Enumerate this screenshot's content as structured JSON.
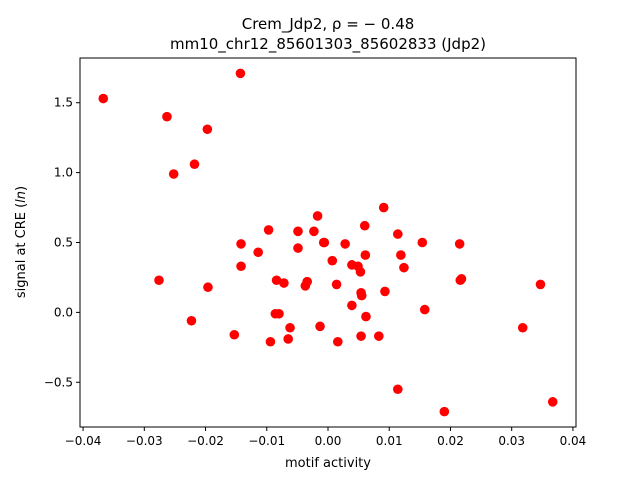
{
  "chart_data": {
    "type": "scatter",
    "title_line1": "Crem_Jdp2, ρ = − 0.48",
    "title_line2": "mm10_chr12_85601303_85602833 (Jdp2)",
    "xlabel": "motif activity",
    "ylabel": "signal at CRE (ln)",
    "xlim": [
      -0.0405,
      0.0405
    ],
    "ylim": [
      -0.82,
      1.82
    ],
    "xticks": [
      -0.04,
      -0.03,
      -0.02,
      -0.01,
      0.0,
      0.01,
      0.02,
      0.03,
      0.04
    ],
    "xtick_labels": [
      "−0.04",
      "−0.03",
      "−0.02",
      "−0.01",
      "0.00",
      "0.01",
      "0.02",
      "0.03",
      "0.04"
    ],
    "yticks": [
      -0.5,
      0.0,
      0.5,
      1.0,
      1.5
    ],
    "ytick_labels": [
      "−0.5",
      "0.0",
      "0.5",
      "1.0",
      "1.5"
    ],
    "grid": false,
    "marker_color": "#ff0000",
    "points": [
      {
        "x": -0.0367,
        "y": 1.53
      },
      {
        "x": -0.0263,
        "y": 1.4
      },
      {
        "x": -0.0143,
        "y": 1.71
      },
      {
        "x": -0.0197,
        "y": 1.31
      },
      {
        "x": -0.0218,
        "y": 1.06
      },
      {
        "x": -0.0252,
        "y": 0.99
      },
      {
        "x": -0.0276,
        "y": 0.23
      },
      {
        "x": -0.0223,
        "y": -0.06
      },
      {
        "x": -0.0196,
        "y": 0.18
      },
      {
        "x": -0.0153,
        "y": -0.16
      },
      {
        "x": -0.0142,
        "y": 0.49
      },
      {
        "x": -0.0142,
        "y": 0.33
      },
      {
        "x": -0.0114,
        "y": 0.43
      },
      {
        "x": -0.0097,
        "y": 0.59
      },
      {
        "x": -0.0094,
        "y": -0.21
      },
      {
        "x": -0.0086,
        "y": -0.01
      },
      {
        "x": -0.0084,
        "y": 0.23
      },
      {
        "x": -0.008,
        "y": -0.01
      },
      {
        "x": -0.0072,
        "y": 0.21
      },
      {
        "x": -0.0065,
        "y": -0.19
      },
      {
        "x": -0.0062,
        "y": -0.11
      },
      {
        "x": -0.0049,
        "y": 0.58
      },
      {
        "x": -0.0049,
        "y": 0.46
      },
      {
        "x": -0.0037,
        "y": 0.19
      },
      {
        "x": -0.0034,
        "y": 0.22
      },
      {
        "x": -0.0023,
        "y": 0.58
      },
      {
        "x": -0.0017,
        "y": 0.69
      },
      {
        "x": -0.0013,
        "y": -0.1
      },
      {
        "x": -0.0007,
        "y": 0.5
      },
      {
        "x": -0.0006,
        "y": 0.5
      },
      {
        "x": 0.0007,
        "y": 0.37
      },
      {
        "x": 0.0014,
        "y": 0.2
      },
      {
        "x": 0.0016,
        "y": -0.21
      },
      {
        "x": 0.0028,
        "y": 0.49
      },
      {
        "x": 0.0039,
        "y": 0.34
      },
      {
        "x": 0.0039,
        "y": 0.05
      },
      {
        "x": 0.0049,
        "y": 0.33
      },
      {
        "x": 0.0053,
        "y": 0.29
      },
      {
        "x": 0.0054,
        "y": 0.14
      },
      {
        "x": 0.0055,
        "y": 0.12
      },
      {
        "x": 0.0054,
        "y": -0.17
      },
      {
        "x": 0.006,
        "y": 0.62
      },
      {
        "x": 0.0061,
        "y": 0.41
      },
      {
        "x": 0.0062,
        "y": -0.03
      },
      {
        "x": 0.0083,
        "y": -0.17
      },
      {
        "x": 0.0091,
        "y": 0.75
      },
      {
        "x": 0.0093,
        "y": 0.15
      },
      {
        "x": 0.0114,
        "y": 0.56
      },
      {
        "x": 0.0119,
        "y": 0.41
      },
      {
        "x": 0.0124,
        "y": 0.32
      },
      {
        "x": 0.0114,
        "y": -0.55
      },
      {
        "x": 0.0154,
        "y": 0.5
      },
      {
        "x": 0.0158,
        "y": 0.02
      },
      {
        "x": 0.019,
        "y": -0.71
      },
      {
        "x": 0.0215,
        "y": 0.49
      },
      {
        "x": 0.0216,
        "y": 0.23
      },
      {
        "x": 0.0218,
        "y": 0.24
      },
      {
        "x": 0.0318,
        "y": -0.11
      },
      {
        "x": 0.0347,
        "y": 0.2
      },
      {
        "x": 0.0367,
        "y": -0.64
      }
    ]
  }
}
